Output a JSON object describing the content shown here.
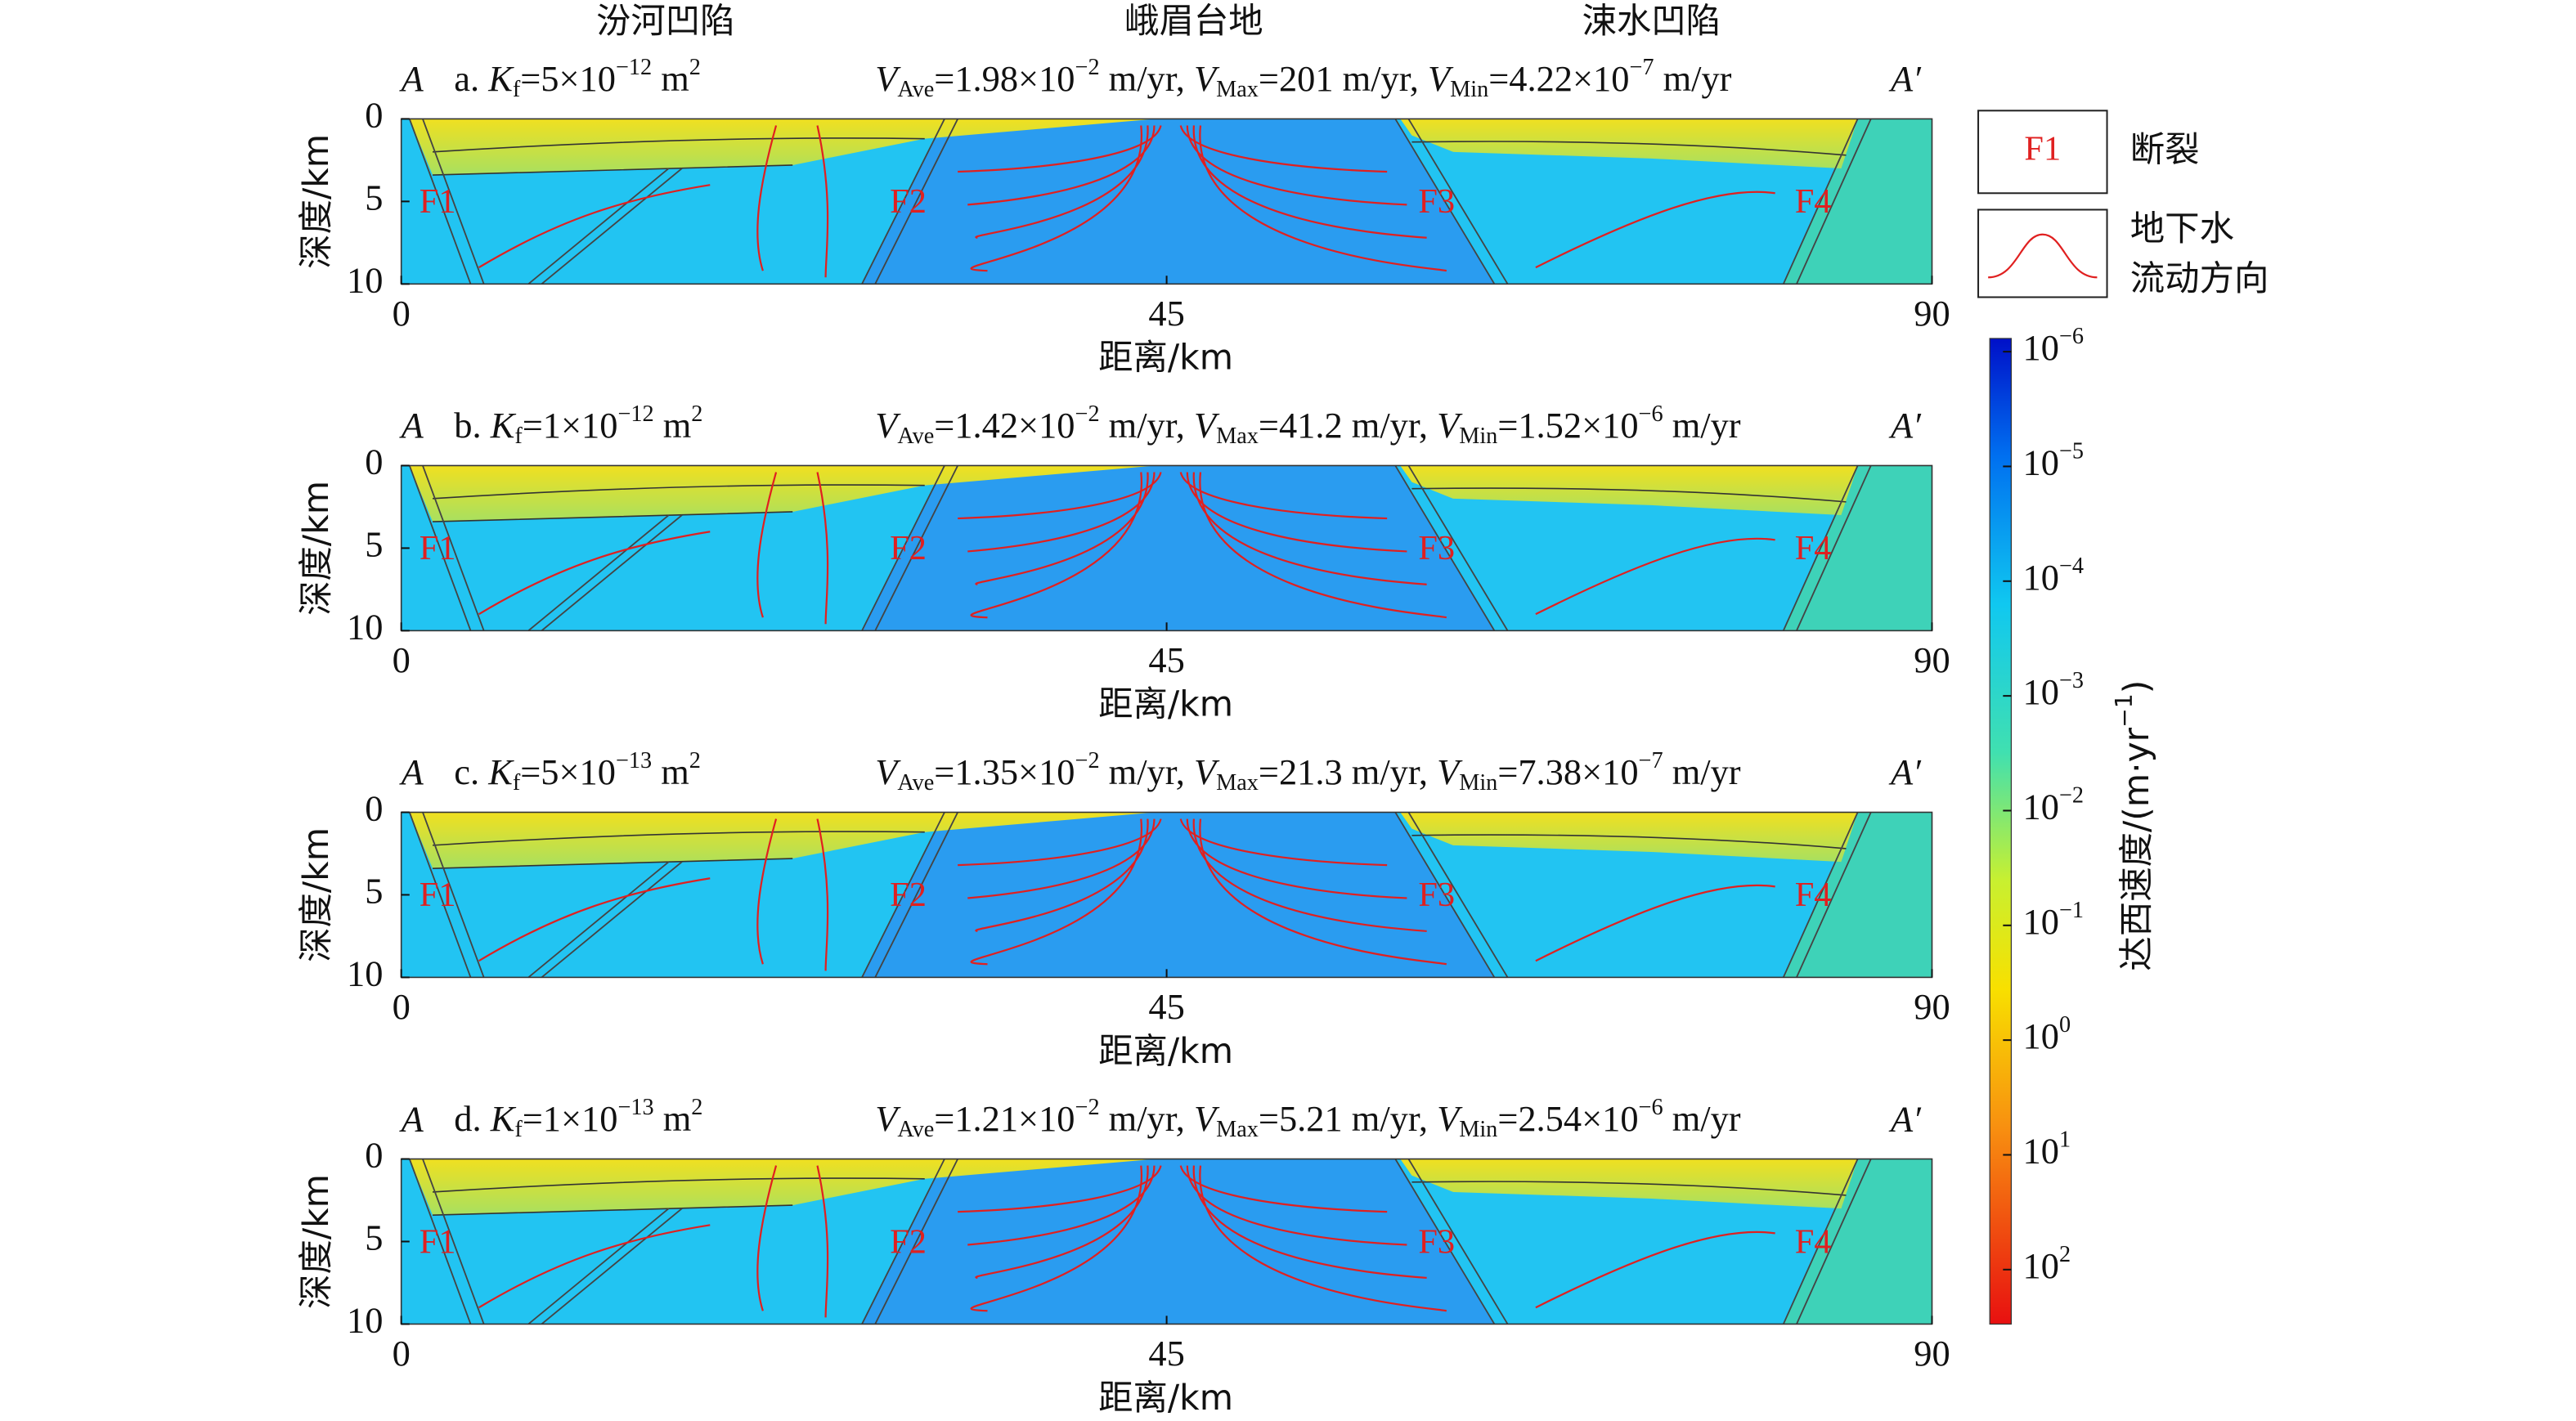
{
  "regions": [
    "汾河凹陷",
    "峨眉台地",
    "涑水凹陷"
  ],
  "axes": {
    "xlabel": "距离/km",
    "ylabel": "深度/km",
    "xlim": [
      0,
      90
    ],
    "ylim": [
      0,
      10
    ],
    "xticks": [
      0,
      45,
      90
    ],
    "yticks": [
      0,
      5,
      10
    ]
  },
  "faults": [
    "F1",
    "F2",
    "F3",
    "F4"
  ],
  "end_left": "A",
  "end_right": "A′",
  "panels": [
    {
      "params": [
        {
          "text": "a. "
        },
        {
          "text": "K",
          "style": "i"
        },
        {
          "text": "f",
          "style": "sub"
        },
        {
          "text": "=5×10"
        },
        {
          "text": "−12",
          "style": "sup"
        },
        {
          "text": " m"
        },
        {
          "text": "2",
          "style": "sup"
        }
      ],
      "velocity": [
        {
          "text": "V",
          "style": "i"
        },
        {
          "text": "Ave",
          "style": "sub"
        },
        {
          "text": "=1.98×10"
        },
        {
          "text": "−2",
          "style": "sup"
        },
        {
          "text": " m/yr, "
        },
        {
          "text": "V",
          "style": "i"
        },
        {
          "text": "Max",
          "style": "sub"
        },
        {
          "text": "=201 m/yr, "
        },
        {
          "text": "V",
          "style": "i"
        },
        {
          "text": "Min",
          "style": "sub"
        },
        {
          "text": "=4.22×10"
        },
        {
          "text": "−7",
          "style": "sup"
        },
        {
          "text": " m/yr"
        }
      ]
    },
    {
      "params": [
        {
          "text": "b. "
        },
        {
          "text": "K",
          "style": "i"
        },
        {
          "text": "f",
          "style": "sub"
        },
        {
          "text": "=1×10"
        },
        {
          "text": "−12",
          "style": "sup"
        },
        {
          "text": " m"
        },
        {
          "text": "2",
          "style": "sup"
        }
      ],
      "velocity": [
        {
          "text": "V",
          "style": "i"
        },
        {
          "text": "Ave",
          "style": "sub"
        },
        {
          "text": "=1.42×10"
        },
        {
          "text": "−2",
          "style": "sup"
        },
        {
          "text": " m/yr, "
        },
        {
          "text": "V",
          "style": "i"
        },
        {
          "text": "Max",
          "style": "sub"
        },
        {
          "text": "=41.2 m/yr, "
        },
        {
          "text": "V",
          "style": "i"
        },
        {
          "text": "Min",
          "style": "sub"
        },
        {
          "text": "=1.52×10"
        },
        {
          "text": "−6",
          "style": "sup"
        },
        {
          "text": " m/yr"
        }
      ]
    },
    {
      "params": [
        {
          "text": "c. "
        },
        {
          "text": "K",
          "style": "i"
        },
        {
          "text": "f",
          "style": "sub"
        },
        {
          "text": "=5×10"
        },
        {
          "text": "−13",
          "style": "sup"
        },
        {
          "text": " m"
        },
        {
          "text": "2",
          "style": "sup"
        }
      ],
      "velocity": [
        {
          "text": "V",
          "style": "i"
        },
        {
          "text": "Ave",
          "style": "sub"
        },
        {
          "text": "=1.35×10"
        },
        {
          "text": "−2",
          "style": "sup"
        },
        {
          "text": " m/yr, "
        },
        {
          "text": "V",
          "style": "i"
        },
        {
          "text": "Max",
          "style": "sub"
        },
        {
          "text": "=21.3 m/yr, "
        },
        {
          "text": "V",
          "style": "i"
        },
        {
          "text": "Min",
          "style": "sub"
        },
        {
          "text": "=7.38×10"
        },
        {
          "text": "−7",
          "style": "sup"
        },
        {
          "text": " m/yr"
        }
      ]
    },
    {
      "params": [
        {
          "text": "d. "
        },
        {
          "text": "K",
          "style": "i"
        },
        {
          "text": "f",
          "style": "sub"
        },
        {
          "text": "=1×10"
        },
        {
          "text": "−13",
          "style": "sup"
        },
        {
          "text": " m"
        },
        {
          "text": "2",
          "style": "sup"
        }
      ],
      "velocity": [
        {
          "text": "V",
          "style": "i"
        },
        {
          "text": "Ave",
          "style": "sub"
        },
        {
          "text": "=1.21×10"
        },
        {
          "text": "−2",
          "style": "sup"
        },
        {
          "text": " m/yr, "
        },
        {
          "text": "V",
          "style": "i"
        },
        {
          "text": "Max",
          "style": "sub"
        },
        {
          "text": "=5.21 m/yr, "
        },
        {
          "text": "V",
          "style": "i"
        },
        {
          "text": "Min",
          "style": "sub"
        },
        {
          "text": "=2.54×10"
        },
        {
          "text": "−6",
          "style": "sup"
        },
        {
          "text": " m/yr"
        }
      ]
    }
  ],
  "legend": {
    "fault_sample": "F1",
    "fault_label": "断裂",
    "flow_label": [
      "地下水",
      "流动方向"
    ]
  },
  "colorbar": {
    "title": "达西速度/(m·yr",
    "title_exp": "−1",
    "title_end": ")",
    "ticks": [
      {
        "base": "10",
        "exp": "−6"
      },
      {
        "base": "10",
        "exp": "−5"
      },
      {
        "base": "10",
        "exp": "−4"
      },
      {
        "base": "10",
        "exp": "−3"
      },
      {
        "base": "10",
        "exp": "−2"
      },
      {
        "base": "10",
        "exp": "−1"
      },
      {
        "base": "10",
        "exp": "0"
      },
      {
        "base": "10",
        "exp": "1"
      },
      {
        "base": "10",
        "exp": "2"
      }
    ]
  }
}
